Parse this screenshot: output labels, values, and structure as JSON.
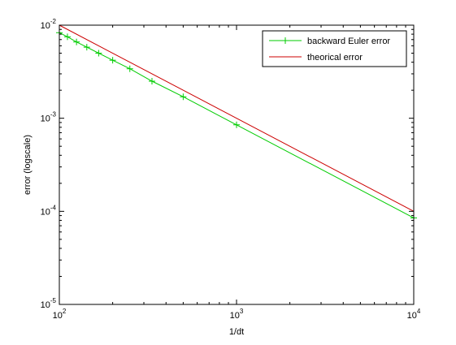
{
  "chart_data": {
    "type": "line",
    "xlabel": "1/dt",
    "ylabel": "error (logscale)",
    "xscale": "log",
    "yscale": "log",
    "xlim": [
      100,
      10000
    ],
    "ylim": [
      1e-05,
      0.01
    ],
    "x_ticks": [
      {
        "value": 100,
        "base": "10",
        "exp": "2"
      },
      {
        "value": 1000,
        "base": "10",
        "exp": "3"
      },
      {
        "value": 10000,
        "base": "10",
        "exp": "4"
      }
    ],
    "y_ticks": [
      {
        "value": 1e-05,
        "base": "10",
        "exp": "-5"
      },
      {
        "value": 0.0001,
        "base": "10",
        "exp": "-4"
      },
      {
        "value": 0.001,
        "base": "10",
        "exp": "-3"
      },
      {
        "value": 0.01,
        "base": "10",
        "exp": "-2"
      }
    ],
    "grid": false,
    "legend_position": "top-right",
    "series": [
      {
        "name": "backward Euler error",
        "color": "#00cc00",
        "marker": "plus",
        "x": [
          100,
          111.1,
          125,
          142.9,
          166.7,
          200,
          250,
          333.3,
          500,
          1000,
          10000
        ],
        "y": [
          0.0083,
          0.0075,
          0.0066,
          0.0058,
          0.005,
          0.0042,
          0.0034,
          0.0025,
          0.0017,
          0.00085,
          8.5e-05
        ]
      },
      {
        "name": "theorical error",
        "color": "#cc0000",
        "marker": "none",
        "x": [
          100,
          10000
        ],
        "y": [
          0.01,
          0.0001
        ]
      }
    ]
  }
}
